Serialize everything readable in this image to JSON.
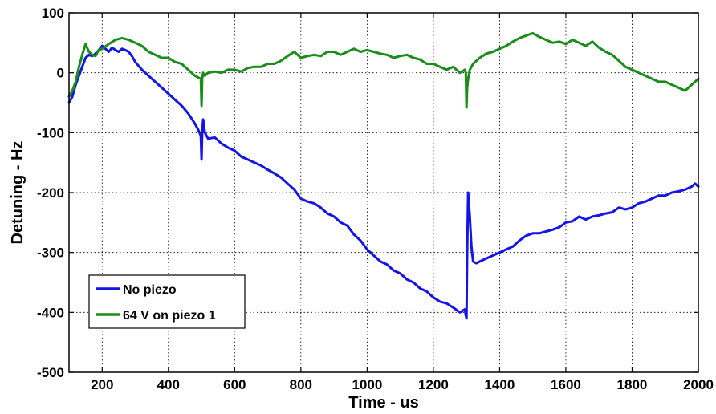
{
  "chart_data": {
    "type": "line",
    "xlabel": "Time - us",
    "ylabel": "Detuning - Hz",
    "xlim": [
      100,
      2000
    ],
    "ylim": [
      -500,
      100
    ],
    "xticks": [
      200,
      400,
      600,
      800,
      1000,
      1200,
      1400,
      1600,
      1800,
      2000
    ],
    "yticks": [
      100,
      0,
      -100,
      -200,
      -300,
      -400,
      -500
    ],
    "grid": true,
    "legend_position": "lower-left",
    "series": [
      {
        "name": "No piezo",
        "color": "#1414e6",
        "x": [
          100,
          110,
          120,
          130,
          140,
          150,
          160,
          170,
          180,
          190,
          200,
          210,
          220,
          230,
          240,
          250,
          260,
          270,
          280,
          290,
          300,
          320,
          340,
          360,
          380,
          400,
          420,
          440,
          460,
          480,
          490,
          498,
          500,
          502,
          505,
          510,
          520,
          540,
          560,
          580,
          600,
          620,
          640,
          660,
          680,
          700,
          720,
          740,
          760,
          780,
          800,
          820,
          840,
          860,
          880,
          900,
          920,
          940,
          960,
          980,
          1000,
          1020,
          1040,
          1060,
          1080,
          1100,
          1120,
          1140,
          1160,
          1180,
          1200,
          1220,
          1240,
          1260,
          1280,
          1295,
          1298,
          1300,
          1302,
          1305,
          1310,
          1315,
          1320,
          1330,
          1340,
          1360,
          1380,
          1400,
          1420,
          1440,
          1460,
          1480,
          1500,
          1520,
          1540,
          1560,
          1580,
          1600,
          1620,
          1640,
          1660,
          1680,
          1700,
          1720,
          1740,
          1760,
          1780,
          1800,
          1820,
          1840,
          1860,
          1880,
          1900,
          1920,
          1940,
          1960,
          1980,
          1990,
          2000
        ],
        "y": [
          -50,
          -40,
          -20,
          -5,
          10,
          25,
          30,
          28,
          32,
          38,
          45,
          40,
          35,
          42,
          38,
          35,
          40,
          38,
          35,
          28,
          18,
          5,
          -5,
          -15,
          -25,
          -35,
          -45,
          -55,
          -68,
          -85,
          -95,
          -105,
          -145,
          -100,
          -78,
          -100,
          -110,
          -108,
          -118,
          -125,
          -130,
          -140,
          -145,
          -150,
          -155,
          -162,
          -168,
          -175,
          -185,
          -195,
          -210,
          -215,
          -218,
          -225,
          -235,
          -240,
          -250,
          -255,
          -270,
          -280,
          -295,
          -305,
          -315,
          -320,
          -330,
          -335,
          -345,
          -350,
          -360,
          -365,
          -375,
          -382,
          -385,
          -392,
          -400,
          -395,
          -405,
          -410,
          -300,
          -200,
          -240,
          -290,
          -315,
          -318,
          -315,
          -310,
          -305,
          -300,
          -295,
          -290,
          -280,
          -272,
          -268,
          -268,
          -265,
          -262,
          -258,
          -250,
          -248,
          -240,
          -245,
          -240,
          -238,
          -235,
          -233,
          -225,
          -228,
          -225,
          -218,
          -215,
          -210,
          -205,
          -205,
          -200,
          -198,
          -195,
          -190,
          -185,
          -190
        ]
      },
      {
        "name": "64 V on piezo 1",
        "color": "#1a8c1a",
        "x": [
          100,
          110,
          120,
          130,
          140,
          150,
          160,
          170,
          180,
          190,
          200,
          220,
          240,
          260,
          280,
          300,
          320,
          340,
          360,
          380,
          400,
          420,
          440,
          460,
          480,
          490,
          498,
          500,
          502,
          505,
          510,
          520,
          540,
          560,
          580,
          600,
          620,
          640,
          660,
          680,
          700,
          720,
          740,
          760,
          780,
          800,
          820,
          840,
          860,
          880,
          900,
          920,
          940,
          960,
          980,
          1000,
          1020,
          1040,
          1060,
          1080,
          1100,
          1120,
          1140,
          1160,
          1180,
          1200,
          1220,
          1240,
          1260,
          1280,
          1295,
          1298,
          1300,
          1302,
          1305,
          1310,
          1320,
          1340,
          1360,
          1380,
          1400,
          1420,
          1440,
          1460,
          1480,
          1500,
          1520,
          1540,
          1560,
          1580,
          1600,
          1620,
          1640,
          1660,
          1680,
          1700,
          1720,
          1740,
          1760,
          1780,
          1800,
          1820,
          1840,
          1860,
          1880,
          1900,
          1920,
          1940,
          1960,
          1980,
          1990,
          2000
        ],
        "y": [
          -40,
          -30,
          -15,
          10,
          30,
          48,
          35,
          30,
          28,
          38,
          40,
          48,
          55,
          58,
          55,
          50,
          45,
          35,
          30,
          25,
          25,
          18,
          15,
          5,
          -5,
          -8,
          -10,
          -55,
          -10,
          0,
          -5,
          0,
          2,
          0,
          5,
          5,
          2,
          8,
          10,
          10,
          15,
          15,
          20,
          28,
          35,
          25,
          28,
          30,
          28,
          35,
          35,
          30,
          35,
          40,
          35,
          38,
          35,
          32,
          30,
          25,
          28,
          30,
          25,
          22,
          15,
          15,
          10,
          5,
          10,
          0,
          5,
          0,
          -58,
          -25,
          -10,
          5,
          15,
          25,
          32,
          35,
          40,
          45,
          52,
          58,
          62,
          66,
          60,
          55,
          50,
          52,
          48,
          55,
          50,
          45,
          52,
          42,
          35,
          30,
          20,
          10,
          5,
          0,
          -5,
          -10,
          -15,
          -15,
          -20,
          -25,
          -30,
          -20,
          -15,
          -10
        ]
      }
    ]
  }
}
